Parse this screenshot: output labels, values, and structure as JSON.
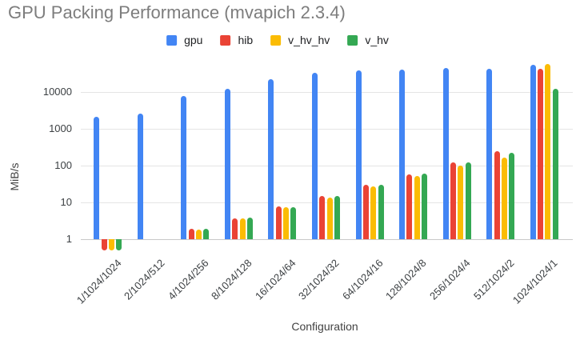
{
  "title": "GPU Packing Performance (mvapich 2.3.4)",
  "legend": {
    "items": [
      {
        "label": "gpu",
        "color": "#4285F4"
      },
      {
        "label": "hib",
        "color": "#EA4335"
      },
      {
        "label": "v_hv_hv",
        "color": "#FBBC04"
      },
      {
        "label": "v_hv",
        "color": "#34A853"
      }
    ]
  },
  "axes": {
    "y_title": "MiB/s",
    "x_title": "Configuration"
  },
  "colors": {
    "gpu": "#4285F4",
    "hib": "#EA4335",
    "v_hv_hv": "#FBBC04",
    "v_hv": "#34A853"
  },
  "chart_data": {
    "type": "bar",
    "title": "GPU Packing Performance (mvapich 2.3.4)",
    "xlabel": "Configuration",
    "ylabel": "MiB/s",
    "y_scale": "log",
    "y_ticks": [
      1,
      10,
      100,
      1000,
      10000
    ],
    "ylim": [
      0.5,
      57000
    ],
    "grid": true,
    "legend_position": "top",
    "categories": [
      "1/1024/1024",
      "2/1024/512",
      "4/1024/256",
      "8/1024/128",
      "16/1024/64",
      "32/1024/32",
      "64/1024/16",
      "128/1024/8",
      "256/1024/4",
      "512/1024/2",
      "1024/1024/1"
    ],
    "series": [
      {
        "name": "gpu",
        "color": "#4285F4",
        "values": [
          2100,
          2600,
          7900,
          12400,
          22500,
          33000,
          38500,
          41000,
          44000,
          42000,
          55000
        ]
      },
      {
        "name": "hib",
        "color": "#EA4335",
        "values": [
          0.5,
          null,
          1.9,
          3.7,
          7.7,
          14.9,
          30,
          59,
          122,
          243,
          42000
        ]
      },
      {
        "name": "v_hv_hv",
        "color": "#FBBC04",
        "values": [
          0.5,
          null,
          1.85,
          3.6,
          7.3,
          13.5,
          27.5,
          52,
          99,
          167,
          57000
        ]
      },
      {
        "name": "v_hv",
        "color": "#34A853",
        "values": [
          0.5,
          null,
          1.9,
          3.8,
          7.6,
          15.3,
          30,
          60,
          124,
          222,
          12000
        ]
      }
    ]
  }
}
